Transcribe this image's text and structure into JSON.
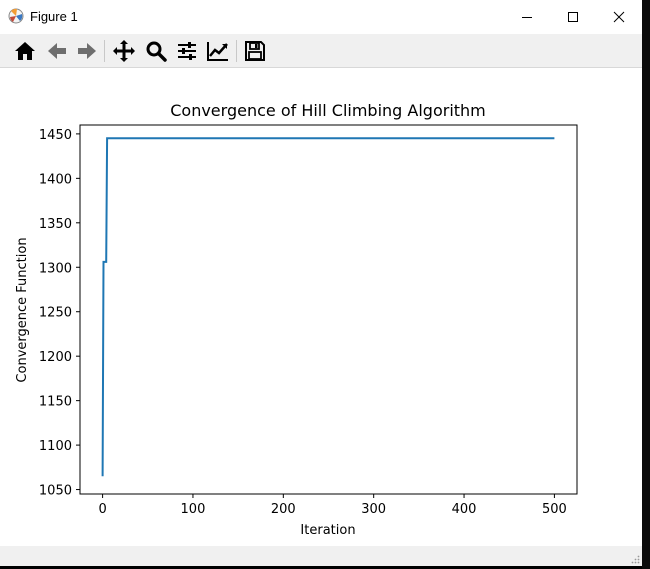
{
  "window": {
    "title": "Figure 1",
    "controls": {
      "minimize": "minimize",
      "maximize": "maximize",
      "close": "close"
    }
  },
  "toolbar": {
    "buttons": [
      {
        "name": "home",
        "icon": "home-icon"
      },
      {
        "name": "back",
        "icon": "arrow-left-icon"
      },
      {
        "name": "forward",
        "icon": "arrow-right-icon"
      },
      {
        "name": "pan",
        "icon": "move-icon"
      },
      {
        "name": "zoom",
        "icon": "magnifier-icon"
      },
      {
        "name": "configure-subplots",
        "icon": "sliders-icon"
      },
      {
        "name": "edit-axis",
        "icon": "line-chart-icon"
      },
      {
        "name": "save",
        "icon": "floppy-disk-icon"
      }
    ]
  },
  "chart_data": {
    "type": "line",
    "title": "Convergence of Hill Climbing Algorithm",
    "xlabel": "Iteration",
    "ylabel": "Convergence Function",
    "xlim": [
      -25,
      525
    ],
    "ylim": [
      1045,
      1460
    ],
    "xticks": [
      0,
      100,
      200,
      300,
      400,
      500
    ],
    "yticks": [
      1050,
      1100,
      1150,
      1200,
      1250,
      1300,
      1350,
      1400,
      1450
    ],
    "grid": false,
    "line_color": "#1f77b4",
    "series": [
      {
        "x": [
          0,
          1,
          1,
          4,
          4,
          5,
          500
        ],
        "y": [
          1065,
          1306,
          1306,
          1306,
          1306,
          1445,
          1445
        ]
      }
    ]
  }
}
